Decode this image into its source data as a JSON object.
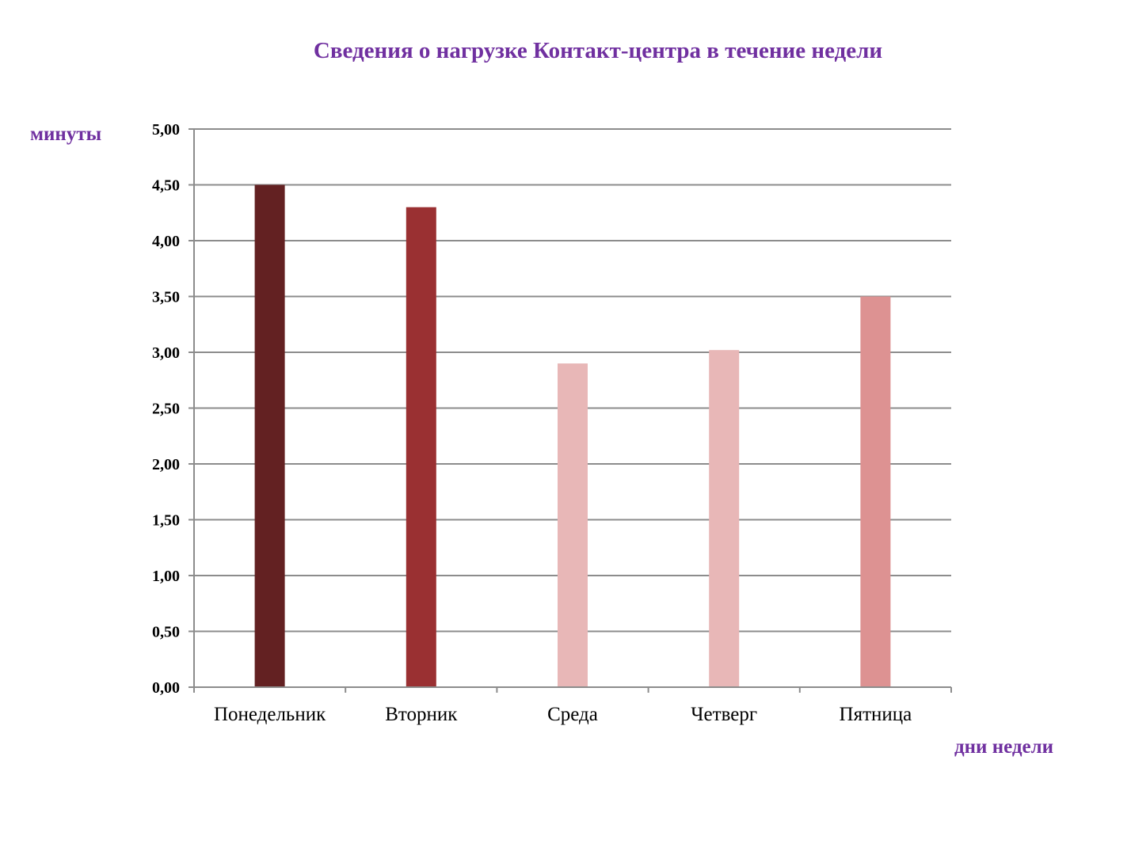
{
  "chart_data": {
    "type": "bar",
    "title": "Сведения о нагрузке Контакт-центра в течение недели",
    "ylabel": "минуты",
    "xlabel": "дни недели",
    "categories": [
      "Понедельник",
      "Вторник",
      "Среда",
      "Четверг",
      "Пятница"
    ],
    "values": [
      4.5,
      4.3,
      2.9,
      3.02,
      3.5
    ],
    "bar_colors": [
      "#632122",
      "#9a3032",
      "#e8b7b7",
      "#e8b7b7",
      "#dd9292"
    ],
    "ylim": [
      0,
      5
    ],
    "yticks": [
      "0,00",
      "0,50",
      "1,00",
      "1,50",
      "2,00",
      "2,50",
      "3,00",
      "3,50",
      "4,00",
      "4,50",
      "5,00"
    ],
    "grid": true,
    "legend": "none"
  }
}
